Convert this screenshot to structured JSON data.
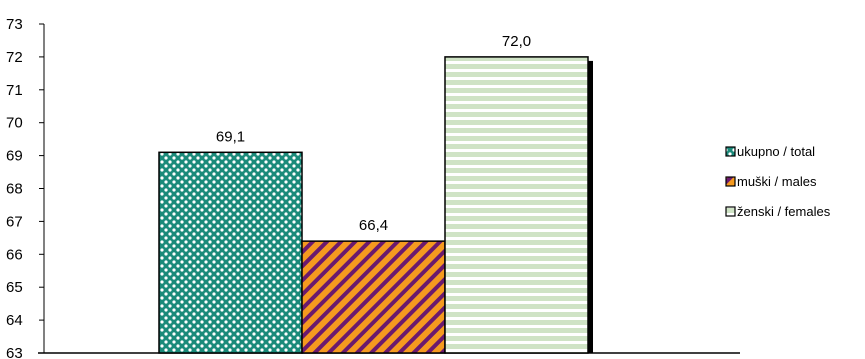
{
  "chart_data": {
    "type": "bar",
    "categories": [
      "ukupno / total",
      "muški / males",
      "ženski / females"
    ],
    "values": [
      69.1,
      66.4,
      72.0
    ],
    "value_labels": [
      "69,1",
      "66,4",
      "72,0"
    ],
    "title": "",
    "xlabel": "",
    "ylabel": "",
    "ylim": [
      63,
      73
    ],
    "yticks": [
      63,
      64,
      65,
      66,
      67,
      68,
      69,
      70,
      71,
      72,
      73
    ],
    "grid": false,
    "legend": {
      "position": "right",
      "entries": [
        "ukupno / total",
        "muški / males",
        "ženski / females"
      ]
    },
    "colors": [
      "#1a8a7a",
      "#f59a1f",
      "#cfe3c5"
    ],
    "pattern_accents": [
      "#ffffff",
      "#6b1a6e",
      "#ffffff"
    ]
  }
}
